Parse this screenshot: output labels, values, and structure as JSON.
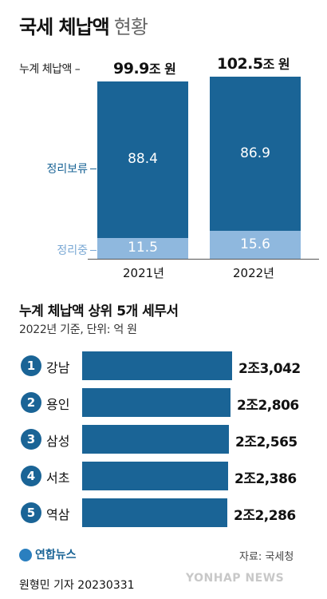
{
  "header": {
    "title": "국세 체납액",
    "subtitle": "현황"
  },
  "top_chart": {
    "total_label": "누계 체납액 –",
    "totals": [
      {
        "value": "99.9",
        "unit": "조 원"
      },
      {
        "value": "102.5",
        "unit": "조 원"
      }
    ],
    "legend_top": "정리보류",
    "legend_bottom": "정리중",
    "colors": {
      "top": "#1a6496",
      "bottom": "#8fb8de"
    }
  },
  "chart_data": [
    {
      "type": "bar",
      "stacked": true,
      "categories": [
        "2021년",
        "2022년"
      ],
      "series": [
        {
          "name": "정리보류",
          "values": [
            88.4,
            86.9
          ]
        },
        {
          "name": "정리중",
          "values": [
            11.5,
            15.6
          ]
        }
      ],
      "totals": [
        99.9,
        102.5
      ],
      "ylim": [
        0,
        102.5
      ]
    },
    {
      "type": "bar",
      "orientation": "horizontal",
      "title": "누계 체납액 상위 5개 세무서",
      "subtitle": "2022년 기준, 단위: 억 원",
      "categories": [
        "강남",
        "용인",
        "삼성",
        "서초",
        "역삼"
      ],
      "values": [
        23042,
        22806,
        22565,
        22386,
        22286
      ],
      "labels": [
        "2조3,042",
        "2조2,806",
        "2조2,565",
        "2조2,386",
        "2조2,286"
      ]
    }
  ],
  "ranking": {
    "title": "누계 체납액 상위 5개 세무서",
    "subtitle": "2022년 기준, 단위: 억 원",
    "items": [
      {
        "rank": "1",
        "name": "강남",
        "label": "2조3,042"
      },
      {
        "rank": "2",
        "name": "용인",
        "label": "2조2,806"
      },
      {
        "rank": "3",
        "name": "삼성",
        "label": "2조2,565"
      },
      {
        "rank": "4",
        "name": "서초",
        "label": "2조2,386"
      },
      {
        "rank": "5",
        "name": "역삼",
        "label": "2조2,286"
      }
    ]
  },
  "footer": {
    "logo_text": "연합뉴스",
    "source": "자료: 국세청",
    "reporter": "원형민 기자  20230331",
    "watermark": "YONHAP NEWS"
  }
}
